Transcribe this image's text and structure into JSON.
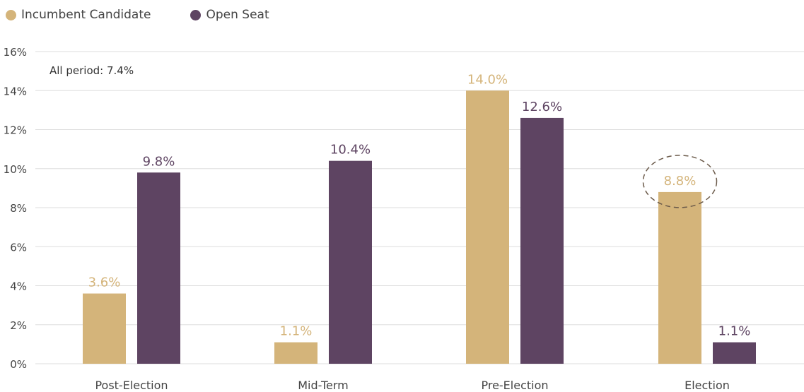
{
  "chart_data": {
    "type": "bar",
    "categories": [
      "Post-Election",
      "Mid-Term",
      "Pre-Election",
      "Election"
    ],
    "series": [
      {
        "name": "Incumbent Candidate",
        "values": [
          3.6,
          1.1,
          14.0,
          8.8
        ],
        "labels": [
          "3.6%",
          "1.1%",
          "14.0%",
          "8.8%"
        ],
        "color": "#D4B47A"
      },
      {
        "name": "Open Seat",
        "values": [
          9.8,
          10.4,
          12.6,
          1.1
        ],
        "labels": [
          "9.8%",
          "10.4%",
          "12.6%",
          "1.1%"
        ],
        "color": "#5E4462"
      }
    ],
    "ylim": [
      0,
      16
    ],
    "yticks": [
      0,
      2,
      4,
      6,
      8,
      10,
      12,
      14,
      16
    ],
    "ytick_labels": [
      "0%",
      "2%",
      "4%",
      "6%",
      "8%",
      "10%",
      "12%",
      "14%",
      "16%"
    ],
    "grid": true,
    "legend_position": "top-left",
    "annotation": "All period: 7.4%",
    "highlight": {
      "category": "Election",
      "series": "Incumbent Candidate"
    }
  },
  "colors": {
    "incumbent": "#D4B47A",
    "open_seat": "#5E4462",
    "grid": "#dedede",
    "axis_text": "#444444",
    "highlight_ring": "#6b5a4a"
  }
}
